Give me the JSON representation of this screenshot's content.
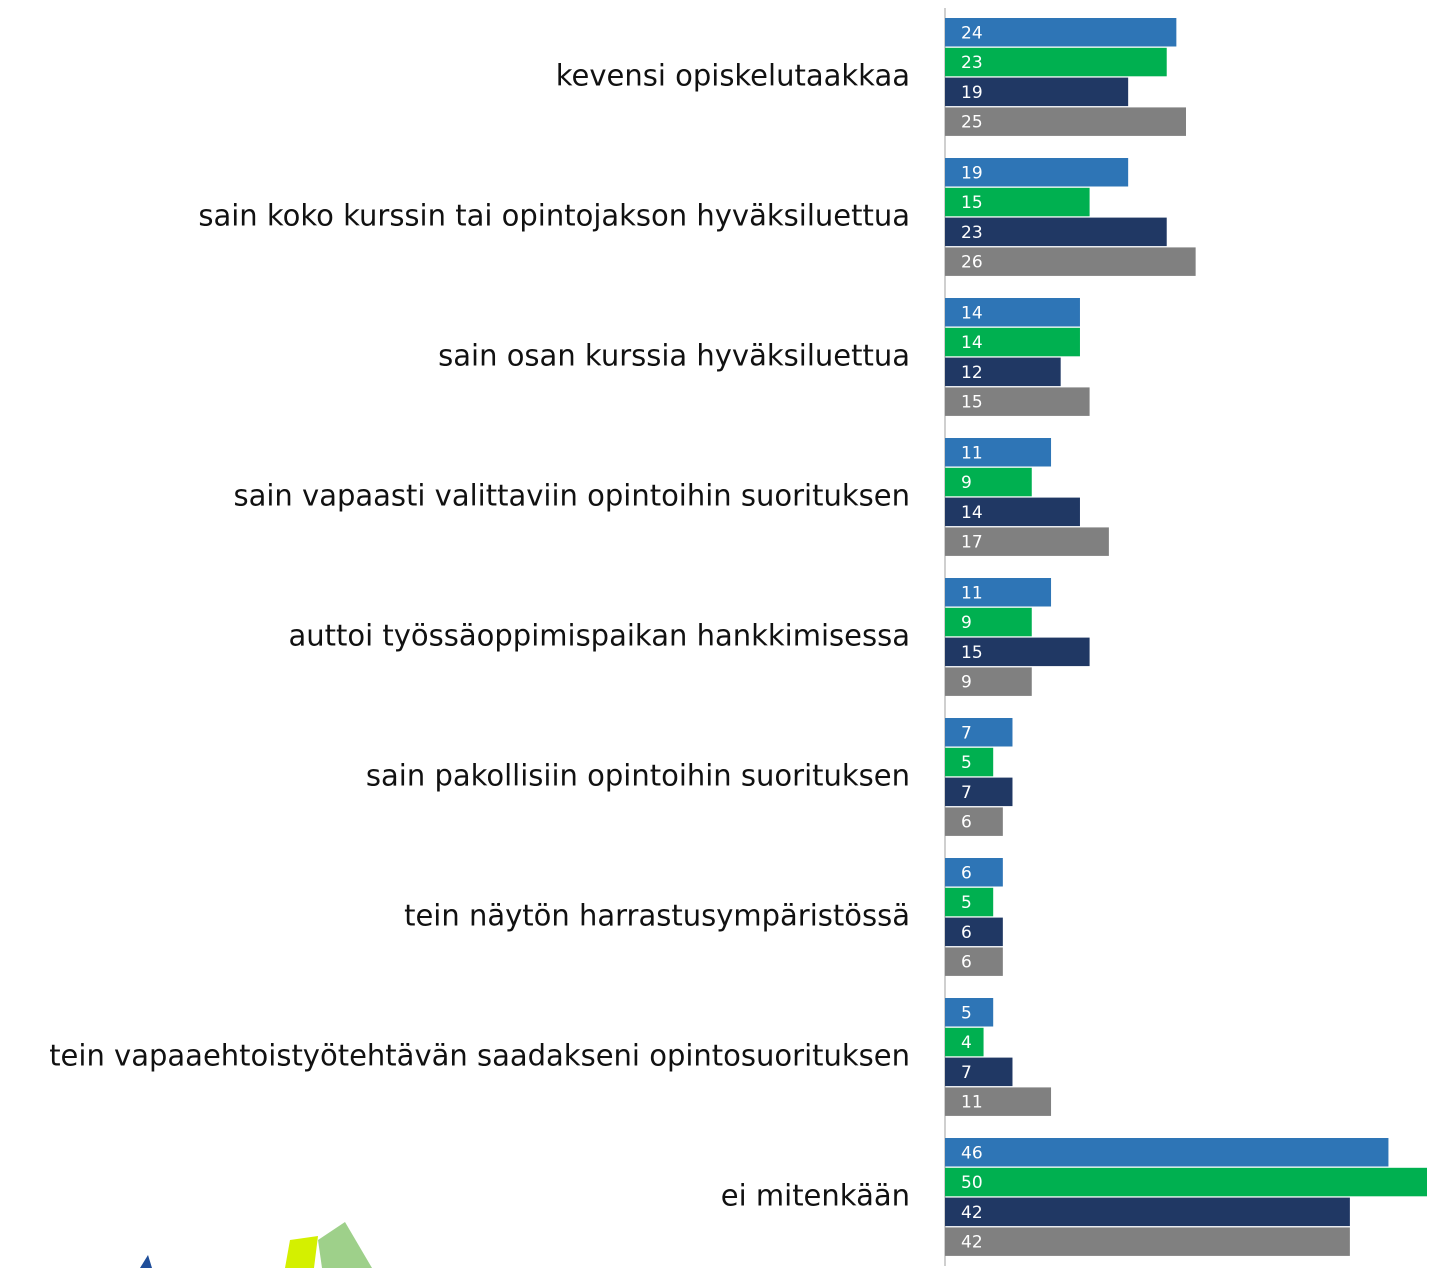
{
  "chart_data": {
    "type": "bar",
    "orientation": "horizontal",
    "categories": [
      "kevensi opiskelutaakkaa",
      "sain koko kurssin tai opintojakson hyväksiluettua",
      "sain osan kurssia hyväksiluettua",
      "sain vapaasti valittaviin opintoihin suorituksen",
      "auttoi työssäoppimispaikan hankkimisessa",
      "sain pakollisiin opintoihin suorituksen",
      "tein näytön harrastusympäristössä",
      "tein vapaaehtoistyötehtävän saadakseni opintosuorituksen",
      "ei mitenkään"
    ],
    "series": [
      {
        "color": "#2e75b6",
        "values": [
          24,
          19,
          14,
          11,
          11,
          7,
          6,
          5,
          46
        ]
      },
      {
        "color": "#00b050",
        "values": [
          23,
          15,
          14,
          9,
          9,
          5,
          5,
          4,
          50
        ]
      },
      {
        "color": "#203864",
        "values": [
          19,
          23,
          12,
          14,
          15,
          7,
          6,
          7,
          42
        ]
      },
      {
        "color": "#808080",
        "values": [
          25,
          26,
          15,
          17,
          9,
          6,
          6,
          11,
          42
        ]
      }
    ],
    "xlim": [
      0,
      50
    ]
  }
}
